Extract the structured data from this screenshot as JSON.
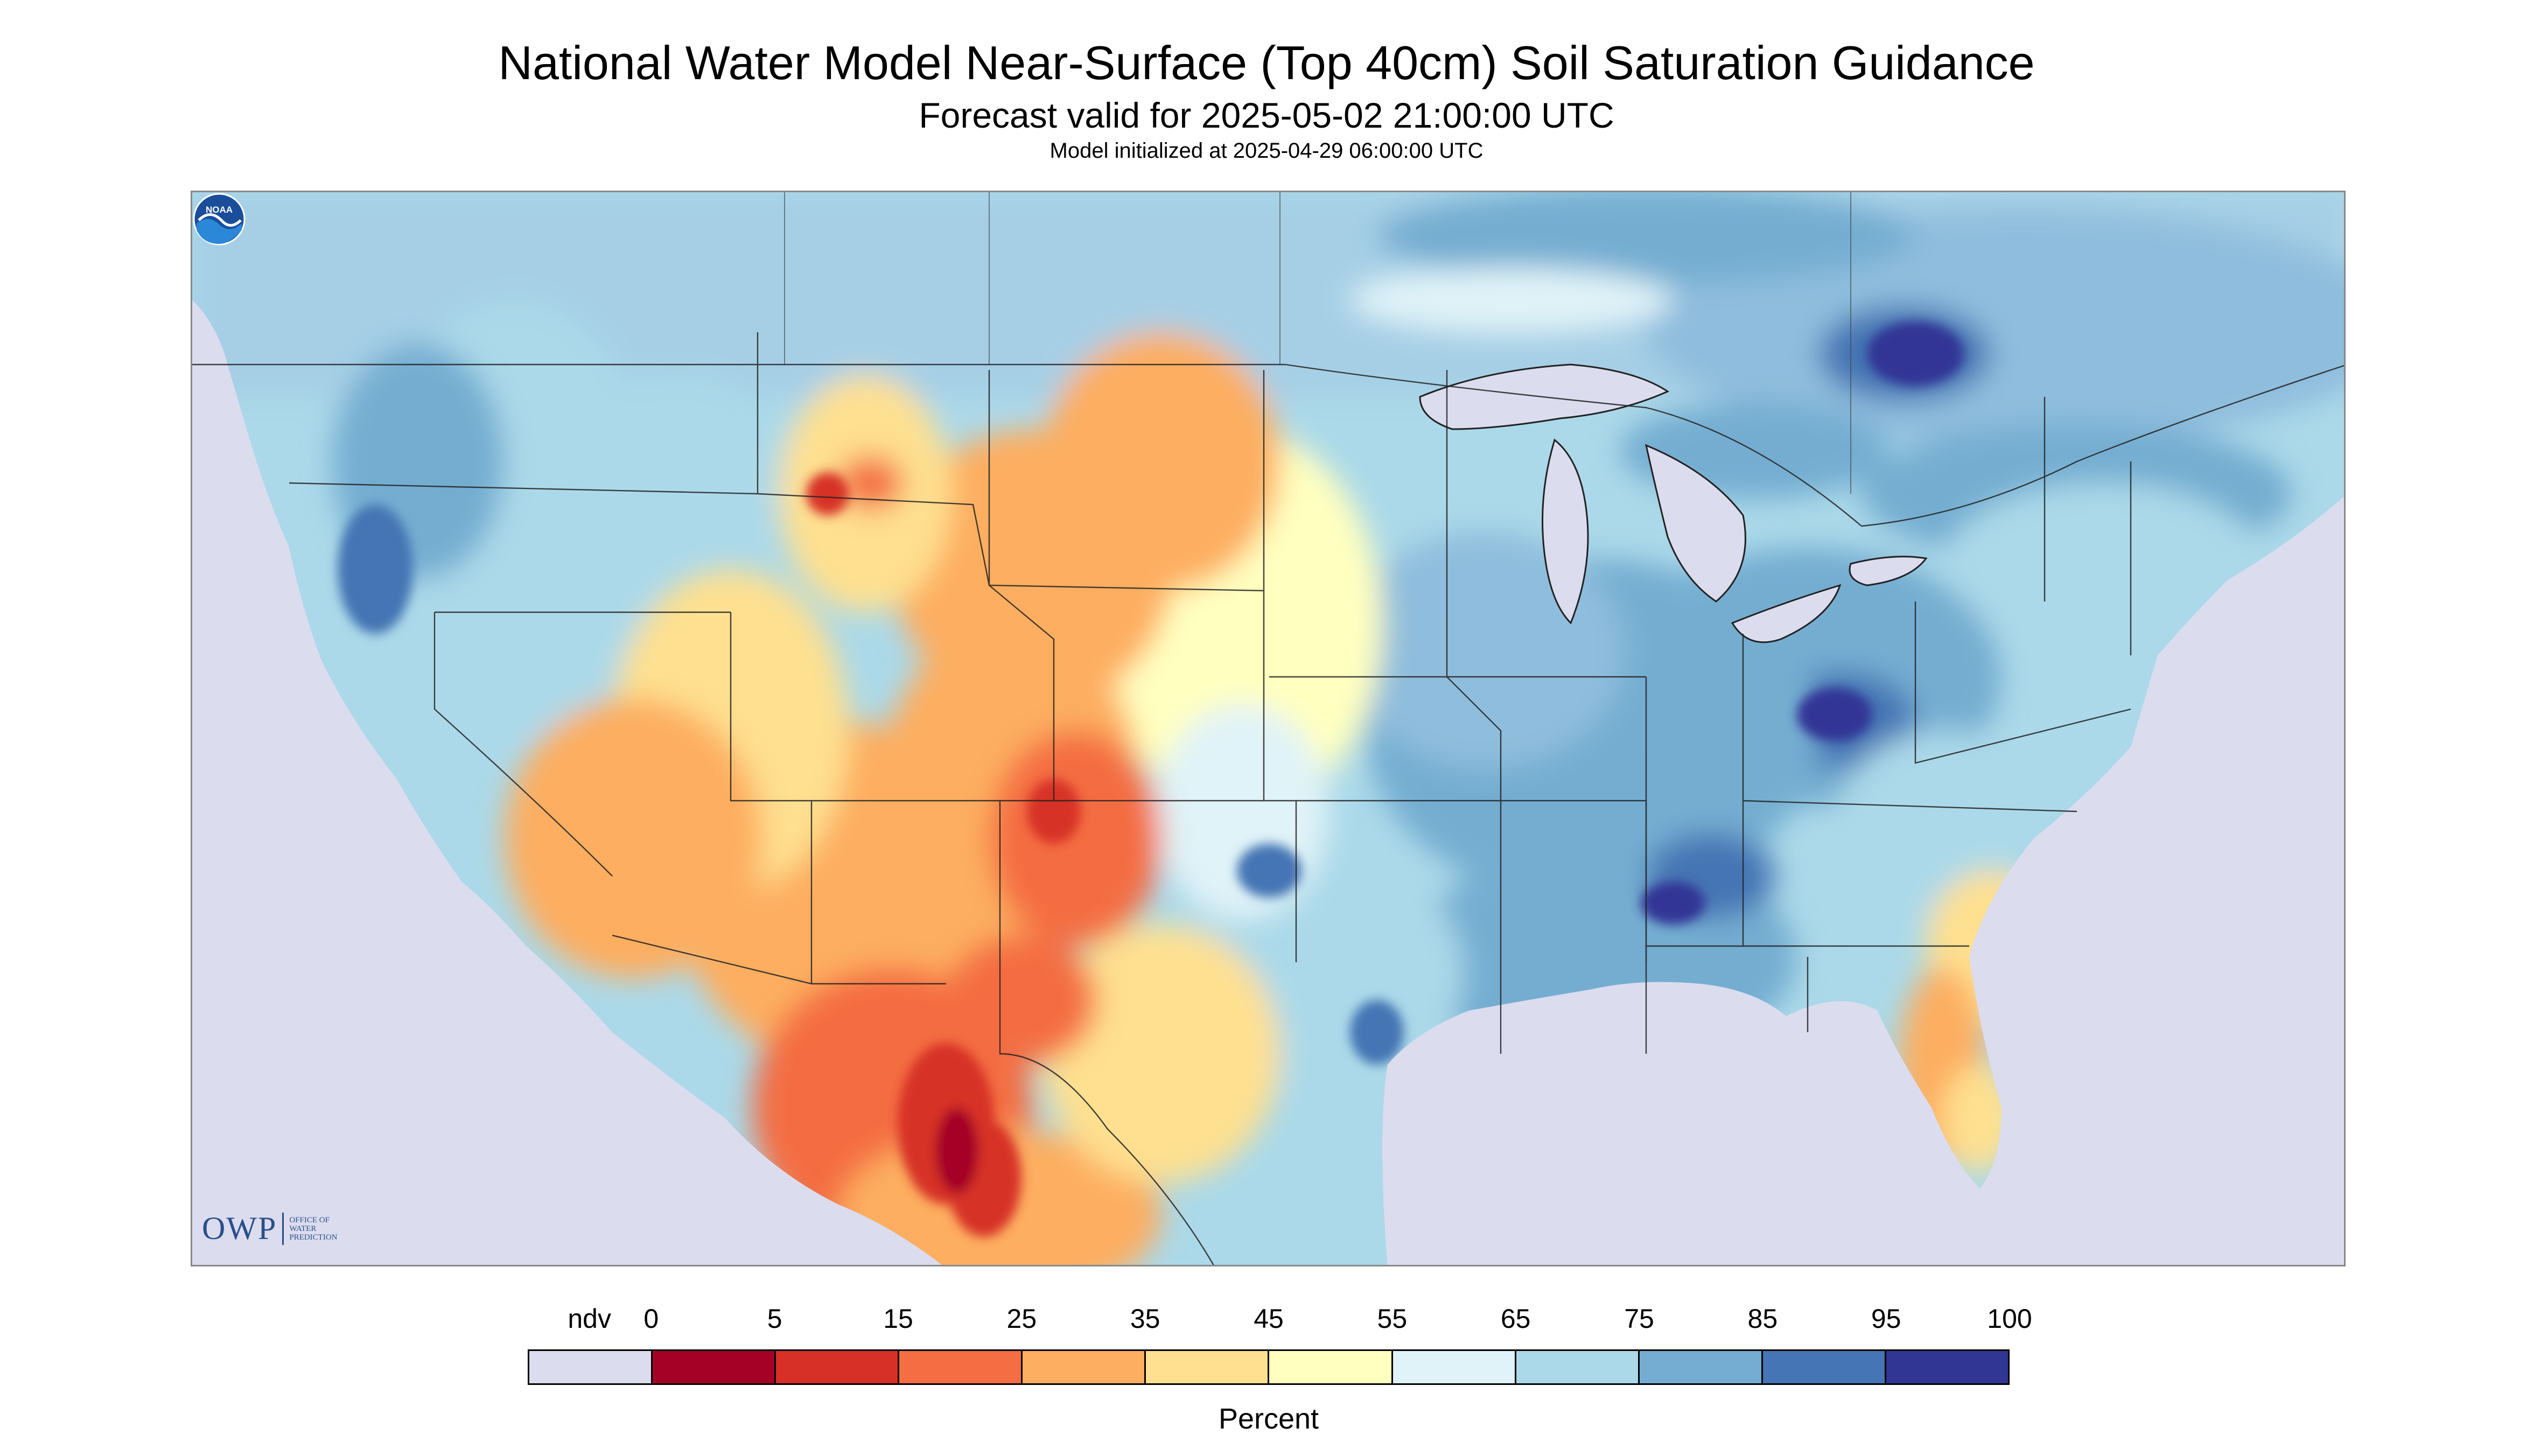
{
  "titles": {
    "main": "National Water Model Near-Surface (Top 40cm) Soil Saturation Guidance",
    "forecast": "Forecast valid for 2025-05-02 21:00:00 UTC",
    "init": "Model initialized at 2025-04-29 06:00:00 UTC"
  },
  "legend": {
    "unit": "Percent",
    "labels": [
      "ndv",
      "0",
      "5",
      "15",
      "25",
      "35",
      "45",
      "55",
      "65",
      "75",
      "85",
      "95",
      "100"
    ],
    "colors": [
      "#dcdcef",
      "#a50026",
      "#d73027",
      "#f46d43",
      "#fdae61",
      "#fee090",
      "#ffffbf",
      "#e0f3f8",
      "#abd9e9",
      "#74add1",
      "#4575b4",
      "#313695"
    ]
  },
  "logos": {
    "owp": "OWP",
    "owp_sub": [
      "OFFICE OF",
      "WATER",
      "PREDICTION"
    ],
    "noaa": "NOAA"
  },
  "map": {
    "background_color": "#dcdcef",
    "ocean_color": "#dcdcef",
    "regions": [
      "pacific-northwest",
      "northern-rockies",
      "great-basin",
      "southwest",
      "northern-mexico",
      "great-plains",
      "midwest",
      "great-lakes",
      "ohio-valley",
      "southeast",
      "gulf-coast",
      "florida",
      "northeast",
      "southern-canada"
    ]
  }
}
